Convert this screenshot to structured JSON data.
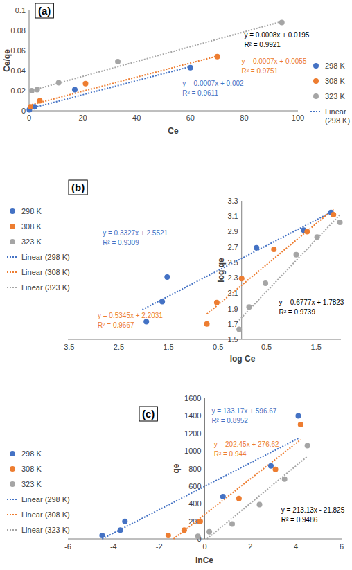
{
  "chart_data": [
    {
      "type": "scatter",
      "title": "(a)",
      "x_label": "Ce",
      "y_label": "Ce/qe",
      "xlim": [
        0,
        100
      ],
      "xticks": [
        0,
        20,
        40,
        60,
        80,
        100
      ],
      "ylim": [
        0,
        0.1
      ],
      "yticks": [
        0,
        0.02,
        0.04,
        0.06,
        0.08,
        0.1
      ],
      "legend": "right",
      "series": [
        {
          "name": "298 K",
          "color": "#4472c4",
          "marker": "circle",
          "x": [
            0.1,
            2,
            17,
            60
          ],
          "values": [
            0.001,
            0.004,
            0.021,
            0.043
          ]
        },
        {
          "name": "308 K",
          "color": "#ed7d31",
          "marker": "circle",
          "x": [
            0.5,
            4,
            21,
            70
          ],
          "values": [
            0.004,
            0.01,
            0.027,
            0.054
          ]
        },
        {
          "name": "323 K",
          "color": "#a5a5a5",
          "marker": "circle",
          "x": [
            1,
            3,
            11,
            33,
            94
          ],
          "values": [
            0.02,
            0.021,
            0.028,
            0.049,
            0.088
          ]
        },
        {
          "name": "Linear (298 K)",
          "type": "line",
          "line_style": "dotted",
          "color": "#4472c4",
          "x": [
            0,
            60
          ],
          "values": [
            0.002,
            0.044
          ]
        },
        {
          "type": "line",
          "line_style": "dotted",
          "color": "#ed7d31",
          "x": [
            0,
            70
          ],
          "values": [
            0.0055,
            0.0545
          ]
        },
        {
          "type": "line",
          "line_style": "dotted",
          "color": "#a5a5a5",
          "x": [
            0,
            94
          ],
          "values": [
            0.0195,
            0.089
          ]
        }
      ],
      "annotations": [
        {
          "text": [
            "y = 0.0007x + 0.002",
            "R² = 0.9611"
          ],
          "color": "#4472c4",
          "x": 57,
          "y": 0.025
        },
        {
          "text": [
            "y = 0.0007x + 0.0055",
            "R² = 0.9751"
          ],
          "color": "#ed7d31",
          "x": 79,
          "y": 0.047
        },
        {
          "text": [
            "y = 0.0008x + 0.0195",
            "R² = 0.9921"
          ],
          "color": "#000000",
          "x": 80,
          "y": 0.073
        }
      ]
    },
    {
      "type": "scatter",
      "title": "(b)",
      "x_label": "log Ce",
      "y_label": "log qe",
      "xlim": [
        -3.5,
        2
      ],
      "xticks": [
        -3.5,
        -2.5,
        -1.5,
        -0.5,
        0.5,
        1.5
      ],
      "ylim": [
        1.5,
        3.3
      ],
      "yticks": [
        1.5,
        1.7,
        1.9,
        2.1,
        2.3,
        2.5,
        2.7,
        2.9,
        3.1,
        3.3
      ],
      "legend": "left",
      "series": [
        {
          "name": "298 K",
          "color": "#4472c4",
          "marker": "circle",
          "x": [
            -1.92,
            -1.6,
            -1.5,
            0.3,
            1.25,
            1.8
          ],
          "values": [
            1.73,
            1.99,
            2.31,
            2.69,
            2.92,
            3.15
          ]
        },
        {
          "name": "308 K",
          "color": "#ed7d31",
          "marker": "circle",
          "x": [
            -0.7,
            -0.5,
            0.0,
            0.65,
            1.32,
            1.85
          ],
          "values": [
            1.7,
            1.98,
            2.29,
            2.67,
            2.9,
            3.12
          ]
        },
        {
          "name": "323 K",
          "color": "#a5a5a5",
          "marker": "circle",
          "x": [
            -0.05,
            0.15,
            0.48,
            1.1,
            1.52,
            1.98
          ],
          "values": [
            1.63,
            1.92,
            2.23,
            2.6,
            2.83,
            3.02
          ]
        },
        {
          "name": "Linear (298 K)",
          "type": "line",
          "line_style": "dotted",
          "color": "#4472c4",
          "x": [
            -2,
            1.8
          ],
          "values": [
            1.887,
            3.151
          ]
        },
        {
          "name": "Linear (308 K)",
          "type": "line",
          "line_style": "dotted",
          "color": "#ed7d31",
          "x": [
            -0.7,
            1.85
          ],
          "values": [
            1.83,
            3.19
          ]
        },
        {
          "name": "Linear (323 K)",
          "type": "line",
          "line_style": "dotted",
          "color": "#a5a5a5",
          "x": [
            -0.05,
            1.98
          ],
          "values": [
            1.75,
            3.12
          ]
        }
      ],
      "annotations": [
        {
          "text": [
            "y = 0.3327x + 2.5521",
            "R² = 0.9309"
          ],
          "color": "#4472c4",
          "x": -2.8,
          "y": 2.85
        },
        {
          "text": [
            "y = 0.5345x + 2.2031",
            "R² = 0.9667"
          ],
          "color": "#ed7d31",
          "x": -2.9,
          "y": 1.78
        },
        {
          "text": [
            "y = 0.6777x + 1.7823",
            "R² = 0.9739"
          ],
          "color": "#000000",
          "x": 0.75,
          "y": 1.95
        }
      ]
    },
    {
      "type": "scatter",
      "title": "(c)",
      "x_label": "lnCe",
      "y_label": "qe",
      "xlim": [
        -6,
        6
      ],
      "xticks": [
        -6,
        -4,
        -2,
        0,
        2,
        4,
        6
      ],
      "ylim": [
        0,
        1600
      ],
      "yticks": [
        0,
        200,
        400,
        600,
        800,
        1000,
        1200,
        1400,
        1600
      ],
      "legend": "left",
      "series": [
        {
          "name": "298 K",
          "color": "#4472c4",
          "marker": "circle",
          "x": [
            -4.5,
            -3.7,
            -3.5,
            0.8,
            2.9,
            4.1
          ],
          "values": [
            40,
            100,
            200,
            480,
            830,
            1400
          ]
        },
        {
          "name": "308 K",
          "color": "#ed7d31",
          "marker": "circle",
          "x": [
            -1.6,
            -0.9,
            -0.2,
            1.5,
            3.1,
            4.2
          ],
          "values": [
            40,
            100,
            200,
            460,
            790,
            1300
          ]
        },
        {
          "name": "323 K",
          "color": "#a5a5a5",
          "marker": "circle",
          "x": [
            -0.3,
            0.2,
            1.2,
            2.4,
            3.5,
            4.5
          ],
          "values": [
            30,
            80,
            170,
            390,
            680,
            1060
          ]
        },
        {
          "name": "Linear (298 K)",
          "type": "line",
          "line_style": "dotted",
          "color": "#4472c4",
          "x": [
            -4.5,
            4.1
          ],
          "values": [
            0,
            1143
          ]
        },
        {
          "name": "Linear (308 K)",
          "type": "line",
          "line_style": "dotted",
          "color": "#ed7d31",
          "x": [
            -1.37,
            4.2
          ],
          "values": [
            0,
            1127
          ]
        },
        {
          "name": "Linear (323 K)",
          "type": "line",
          "line_style": "dotted",
          "color": "#a5a5a5",
          "x": [
            0.1,
            4.5
          ],
          "values": [
            0,
            937
          ]
        }
      ],
      "annotations": [
        {
          "text": [
            "y = 133.17x + 596.67",
            "R² = 0.8952"
          ],
          "color": "#4472c4",
          "x": 0.3,
          "y": 1430
        },
        {
          "text": [
            "y = 202.45x + 276.62",
            "R² = 0.944"
          ],
          "color": "#ed7d31",
          "x": 0.4,
          "y": 1050
        },
        {
          "text": [
            "y = 213.13x - 21.825",
            "R² = 0.9486"
          ],
          "color": "#000000",
          "x": 3.35,
          "y": 300
        }
      ]
    }
  ]
}
